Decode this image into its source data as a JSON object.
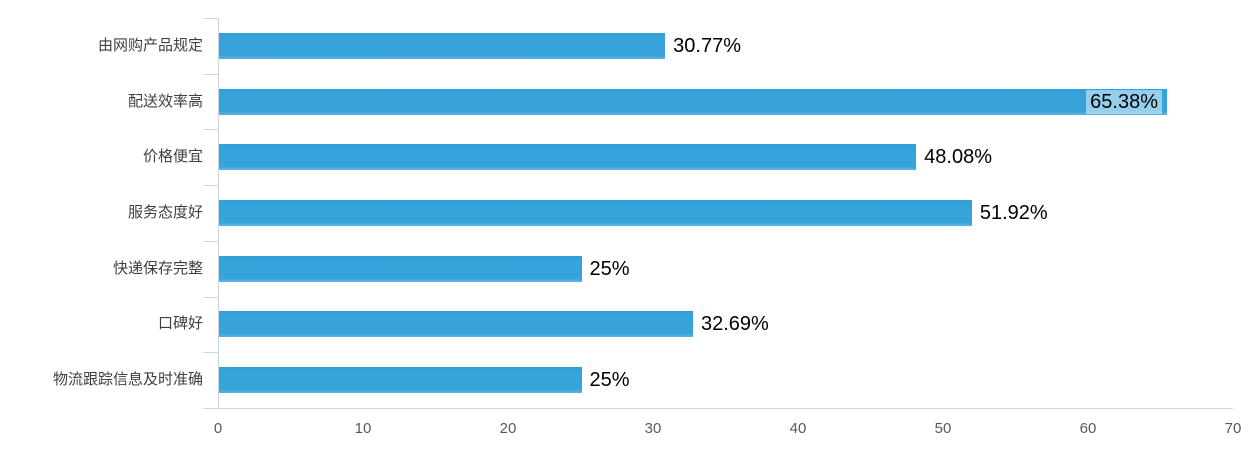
{
  "chart_data": {
    "type": "bar",
    "orientation": "horizontal",
    "title": "",
    "xlabel": "",
    "ylabel": "",
    "categories": [
      "由网购产品规定",
      "配送效率高",
      "价格便宜",
      "服务态度好",
      "快递保存完整",
      "口碑好",
      "物流跟踪信息及时准确"
    ],
    "values": [
      30.77,
      65.38,
      48.08,
      51.92,
      25,
      32.69,
      25
    ],
    "data_labels": [
      "30.77%",
      "65.38%",
      "48.08%",
      "51.92%",
      "25%",
      "32.69%",
      "25%"
    ],
    "label_inside_index": 1,
    "xlim": [
      0,
      70
    ],
    "x_ticks": [
      "0",
      "10",
      "20",
      "30",
      "40",
      "50",
      "60",
      "70"
    ],
    "grid": false,
    "legend": "none",
    "colors": {
      "bar": "#36a3db",
      "axis_line": "#cbd5e2",
      "tick_label": "#595959",
      "category_label": "#3f3f3f",
      "data_label": "#000000",
      "background": "#ffffff"
    }
  }
}
